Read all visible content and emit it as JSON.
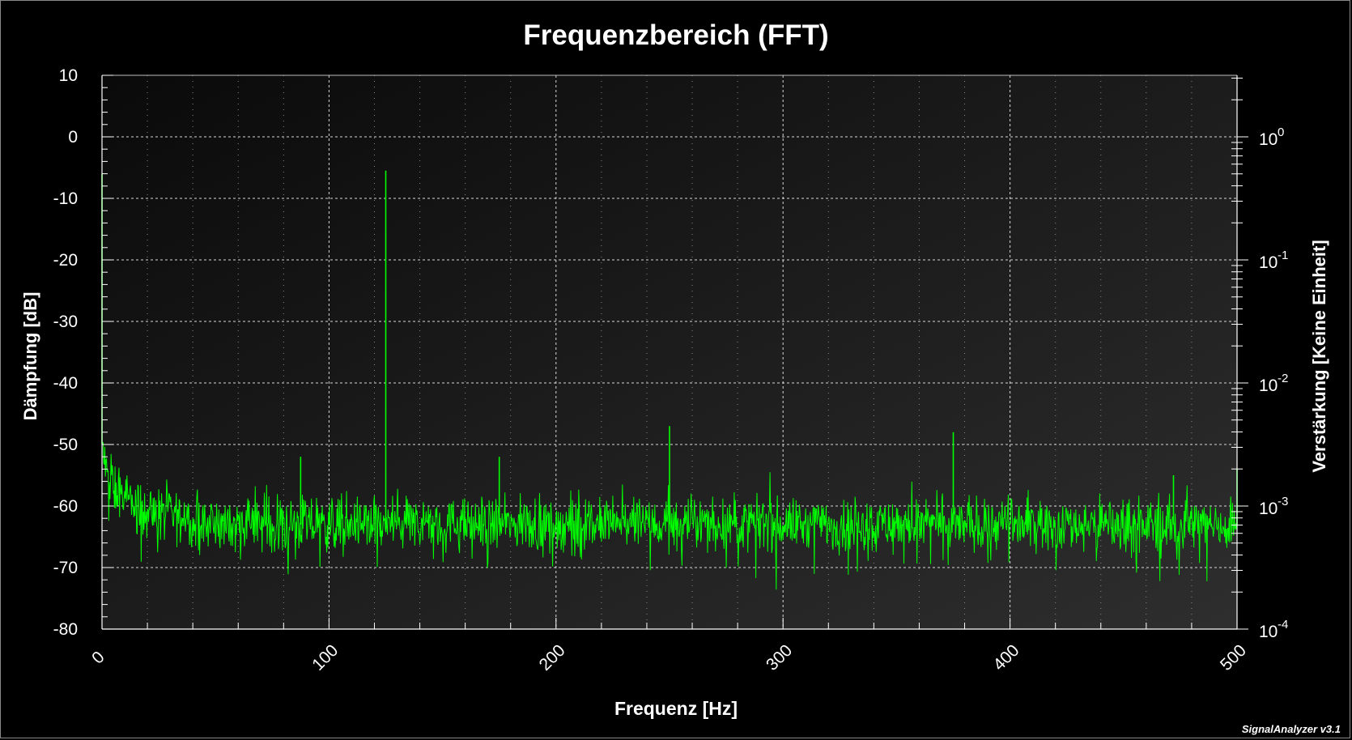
{
  "chart_data": {
    "type": "line",
    "title": "Frequenzbereich (FFT)",
    "xlabel": "Frequenz [Hz]",
    "ylabel": "Dämpfung [dB]",
    "ylabel_right": "Verstärkung [Keine Einheit]",
    "xlim": [
      0,
      500
    ],
    "ylim": [
      -80,
      10
    ],
    "y2lim_log10": [
      -4,
      0.5
    ],
    "y2_scale": "log",
    "grid": true,
    "x_ticks": [
      "0",
      "100",
      "200",
      "300",
      "400",
      "500"
    ],
    "y_ticks": [
      "10",
      "0",
      "-10",
      "-20",
      "-30",
      "-40",
      "-50",
      "-60",
      "-70",
      "-80"
    ],
    "y2_ticks": [
      {
        "base": "10",
        "exp": "0"
      },
      {
        "base": "10",
        "exp": "-1"
      },
      {
        "base": "10",
        "exp": "-2"
      },
      {
        "base": "10",
        "exp": "-3"
      },
      {
        "base": "10",
        "exp": "-4"
      }
    ],
    "series": [
      {
        "color": "#00ff00",
        "noise_floor_db": -63,
        "noise_spread_db": 3.5,
        "low_freq_rolloff": [
          [
            0,
            -50
          ],
          [
            2,
            -55
          ],
          [
            5,
            -57
          ],
          [
            10,
            -59
          ],
          [
            20,
            -61
          ],
          [
            40,
            -62
          ]
        ],
        "peaks": [
          {
            "x": 0,
            "y": -6
          },
          {
            "x": 87.5,
            "y": -52
          },
          {
            "x": 125,
            "y": -5.5
          },
          {
            "x": 175,
            "y": -52
          },
          {
            "x": 250,
            "y": -47
          },
          {
            "x": 375,
            "y": -48
          },
          {
            "x": 472,
            "y": -55
          },
          {
            "x": 500,
            "y": -54
          }
        ]
      }
    ]
  },
  "watermark": "SignalAnalyzer v3.1"
}
